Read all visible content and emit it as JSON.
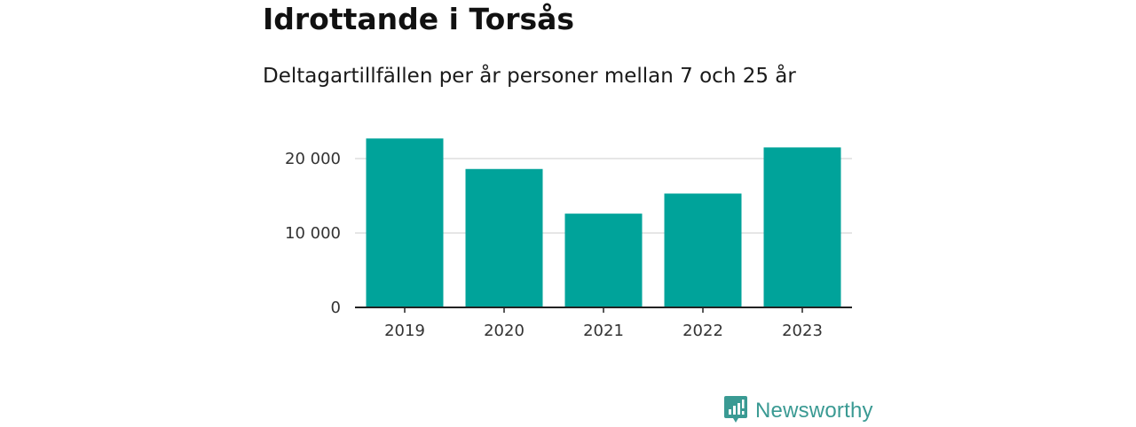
{
  "title": "Idrottande i Torsås",
  "subtitle": "Deltagartillfällen per år personer mellan 7 och 25 år",
  "brand": {
    "name": "Newsworthy",
    "icon": "newsworthy-logo-icon",
    "color": "#3a9a93"
  },
  "colors": {
    "bar": "#00a39a",
    "grid": "#dddddd",
    "axis": "#222222"
  },
  "chart_data": {
    "type": "bar",
    "categories": [
      "2019",
      "2020",
      "2021",
      "2022",
      "2023"
    ],
    "values": [
      22700,
      18600,
      12600,
      15300,
      21500
    ],
    "ylim": [
      0,
      25000
    ],
    "yticks": [
      0,
      10000,
      20000
    ],
    "ytick_labels": [
      "0",
      "10 000",
      "20 000"
    ],
    "xlabel": "",
    "ylabel": "",
    "grid": true,
    "legend": "none"
  }
}
